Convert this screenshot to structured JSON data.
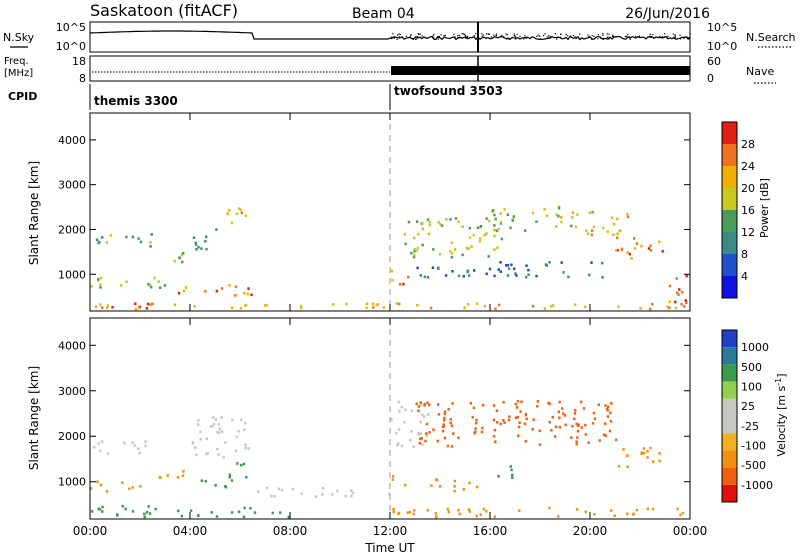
{
  "header": {
    "station": "Saskatoon (fitACF)",
    "beam": "Beam 04",
    "date": "26/Jun/2016"
  },
  "top_panels": {
    "nsky_label": "N.Sky",
    "nsky_ticks": [
      "10^5",
      "10^0"
    ],
    "nsearch_label": "N.Search",
    "nsearch_ticks": [
      "10^5",
      "10^0"
    ],
    "freq_label_line1": "Freq.",
    "freq_label_line2": "[MHz]",
    "freq_ticks": [
      "18",
      "8"
    ],
    "nave_label": "Nave",
    "nave_ticks": [
      "60",
      "0"
    ],
    "cpid_label": "CPID",
    "cpid_segments": [
      {
        "name": "themis 3300",
        "start_hour": 0,
        "end_hour": 12
      },
      {
        "name": "twofsound 3503",
        "start_hour": 12,
        "end_hour": 24
      }
    ]
  },
  "x_axis": {
    "label": "Time UT",
    "ticks": [
      "00:00",
      "04:00",
      "08:00",
      "12:00",
      "16:00",
      "20:00",
      "00:00"
    ],
    "tick_hours": [
      0,
      4,
      8,
      12,
      16,
      20,
      24
    ],
    "range_hours": [
      0,
      24
    ]
  },
  "colors": {
    "power_scale": [
      "#1010e0",
      "#2050c8",
      "#3a8a86",
      "#4a9a5a",
      "#c8c820",
      "#f0b000",
      "#f07020",
      "#e02010"
    ],
    "velocity_scale": [
      "#2040c8",
      "#2a7a9a",
      "#3a9a50",
      "#90d050",
      "#c8c8c0",
      "#c8c8c0",
      "#f0b020",
      "#f09010",
      "#f06010",
      "#e01010"
    ]
  },
  "chart_data": [
    {
      "type": "heatmap",
      "variable": "Power",
      "ylabel": "Slant Range [km]",
      "ylim": [
        180,
        4600
      ],
      "y_ticks": [
        1000,
        2000,
        3000,
        4000
      ],
      "colorbar_label": "Power [dB]",
      "colorbar_ticks": [
        "28",
        "24",
        "20",
        "16",
        "12",
        "8",
        "4"
      ],
      "colorbar_range": [
        0,
        30
      ],
      "regions": [
        {
          "t": [
            0.0,
            2.5
          ],
          "r": [
            1650,
            1950
          ],
          "value": 12
        },
        {
          "t": [
            2.5,
            4.0
          ],
          "r": [
            1250,
            1500
          ],
          "value": 16
        },
        {
          "t": [
            4.0,
            5.2
          ],
          "r": [
            1550,
            2050
          ],
          "value": 12
        },
        {
          "t": [
            5.0,
            6.3
          ],
          "r": [
            2150,
            2500
          ],
          "value": 20
        },
        {
          "t": [
            0.0,
            3.0
          ],
          "r": [
            700,
            1000
          ],
          "value": 16
        },
        {
          "t": [
            3.5,
            6.5
          ],
          "r": [
            550,
            800
          ],
          "value": 24
        },
        {
          "t": [
            0.5,
            3.0
          ],
          "r": [
            250,
            400
          ],
          "value": 28
        },
        {
          "t": [
            0.0,
            24.0
          ],
          "r": [
            250,
            380
          ],
          "value": 20
        },
        {
          "t": [
            12.0,
            12.7
          ],
          "r": [
            800,
            1250
          ],
          "value": 24
        },
        {
          "t": [
            12.5,
            16.5
          ],
          "r": [
            1400,
            2300
          ],
          "value": 16
        },
        {
          "t": [
            16.0,
            19.5
          ],
          "r": [
            2000,
            2550
          ],
          "value": 16
        },
        {
          "t": [
            19.5,
            21.5
          ],
          "r": [
            1900,
            2450
          ],
          "value": 20
        },
        {
          "t": [
            21.0,
            23.0
          ],
          "r": [
            1350,
            1850
          ],
          "value": 24
        },
        {
          "t": [
            23.0,
            24.0
          ],
          "r": [
            300,
            1000
          ],
          "value": 24
        },
        {
          "t": [
            13.0,
            20.5
          ],
          "r": [
            950,
            1300
          ],
          "value": 8
        }
      ]
    },
    {
      "type": "heatmap",
      "variable": "Velocity",
      "ylabel": "Slant Range [km]",
      "ylim": [
        180,
        4600
      ],
      "y_ticks": [
        1000,
        2000,
        3000,
        4000
      ],
      "colorbar_label": "Velocity [m s^-1]",
      "colorbar_ticks": [
        "1000",
        "500",
        "100",
        "25",
        "-25",
        "-100",
        "-500",
        "-1000"
      ],
      "regions": [
        {
          "t": [
            0.0,
            2.5
          ],
          "r": [
            1650,
            1950
          ],
          "value": 0
        },
        {
          "t": [
            4.0,
            6.3
          ],
          "r": [
            1550,
            2500
          ],
          "value": 0
        },
        {
          "t": [
            0.0,
            2.0
          ],
          "r": [
            800,
            1050
          ],
          "value": -200
        },
        {
          "t": [
            2.5,
            4.0
          ],
          "r": [
            1100,
            1350
          ],
          "value": -200
        },
        {
          "t": [
            4.0,
            5.5
          ],
          "r": [
            900,
            1100
          ],
          "value": 60
        },
        {
          "t": [
            5.5,
            6.5
          ],
          "r": [
            1050,
            1450
          ],
          "value": 60
        },
        {
          "t": [
            6.5,
            12.0
          ],
          "r": [
            700,
            900
          ],
          "value": 0
        },
        {
          "t": [
            0.0,
            8.0
          ],
          "r": [
            250,
            500
          ],
          "value": 60
        },
        {
          "t": [
            12.0,
            13.5
          ],
          "r": [
            1800,
            2800
          ],
          "value": 0
        },
        {
          "t": [
            13.0,
            21.0
          ],
          "r": [
            1800,
            2800
          ],
          "value": -600
        },
        {
          "t": [
            21.0,
            23.0
          ],
          "r": [
            1350,
            1800
          ],
          "value": -200
        },
        {
          "t": [
            12.0,
            12.7
          ],
          "r": [
            900,
            1200
          ],
          "value": -200
        },
        {
          "t": [
            13.5,
            15.5
          ],
          "r": [
            800,
            1100
          ],
          "value": -200
        },
        {
          "t": [
            16.0,
            17.0
          ],
          "r": [
            1100,
            1400
          ],
          "value": 60
        },
        {
          "t": [
            12.0,
            24.0
          ],
          "r": [
            250,
            450
          ],
          "value": -200
        }
      ]
    }
  ]
}
